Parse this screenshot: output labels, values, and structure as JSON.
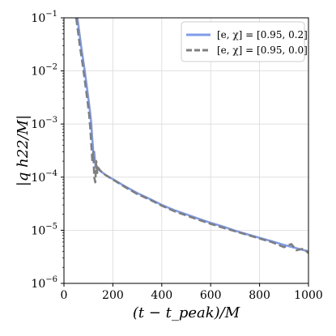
{
  "chart_data": {
    "type": "line",
    "xlabel": "(t − t_peak)/M",
    "ylabel": "|q h22/M|",
    "xlim": [
      0,
      1000
    ],
    "ylim": [
      1e-06,
      0.1
    ],
    "y_scale": "log",
    "grid": true,
    "legend_position": "top-right",
    "x_ticks": [
      0,
      200,
      400,
      600,
      800,
      1000
    ],
    "y_ticks": [
      1e-06,
      1e-05,
      0.0001,
      0.001,
      0.01,
      0.1
    ],
    "x_tick_labels": [
      "0",
      "200",
      "400",
      "600",
      "800",
      "1000"
    ],
    "y_tick_labels": [
      {
        "base": "10",
        "exp": "−6"
      },
      {
        "base": "10",
        "exp": "−5"
      },
      {
        "base": "10",
        "exp": "−4"
      },
      {
        "base": "10",
        "exp": "−3"
      },
      {
        "base": "10",
        "exp": "−2"
      },
      {
        "base": "10",
        "exp": "−1"
      }
    ],
    "series": [
      {
        "name": "[e, χ] = [0.95, 0.2]",
        "color": "#7f9ce8",
        "dash": "solid",
        "x": [
          55,
          70,
          85,
          100,
          108,
          112,
          115,
          118,
          121,
          124,
          127,
          130,
          135,
          140,
          150,
          170,
          200,
          250,
          300,
          350,
          400,
          450,
          500,
          550,
          600,
          650,
          700,
          750,
          800,
          850,
          900,
          950,
          1000
        ],
        "y": [
          0.1,
          0.03,
          0.01,
          0.003,
          0.0015,
          0.001,
          0.0006,
          0.0004,
          0.00025,
          0.0003,
          0.0002,
          0.00015,
          0.00016,
          0.00014,
          0.00013,
          0.00011,
          9.2e-05,
          6.7e-05,
          5e-05,
          3.9e-05,
          3e-05,
          2.4e-05,
          2e-05,
          1.65e-05,
          1.38e-05,
          1.18e-05,
          9.8e-06,
          8.4e-06,
          7.2e-06,
          6.2e-06,
          5.3e-06,
          4.6e-06,
          4e-06
        ]
      },
      {
        "name": "[e, χ] = [0.95, 0.0]",
        "color": "#7f7f7f",
        "dash": "dashed",
        "x": [
          50,
          65,
          80,
          95,
          103,
          108,
          112,
          116,
          120,
          124,
          128,
          132,
          136,
          140,
          150,
          170,
          200,
          250,
          300,
          350,
          400,
          450,
          500,
          550,
          600,
          650,
          700,
          750,
          800,
          850,
          900,
          930,
          950,
          980,
          1000
        ],
        "y": [
          0.1,
          0.03,
          0.01,
          0.003,
          0.0015,
          0.0008,
          0.0004,
          0.0002,
          0.0003,
          0.0001,
          8e-05,
          0.0002,
          0.00012,
          0.00015,
          0.00013,
          0.00011,
          9e-05,
          6.5e-05,
          4.8e-05,
          3.8e-05,
          2.9e-05,
          2.3e-05,
          1.9e-05,
          1.58e-05,
          1.32e-05,
          1.12e-05,
          9.6e-06,
          8.2e-06,
          7e-06,
          6e-06,
          4.8e-06,
          5.5e-06,
          4.2e-06,
          4.5e-06,
          3.7e-06
        ]
      }
    ]
  }
}
